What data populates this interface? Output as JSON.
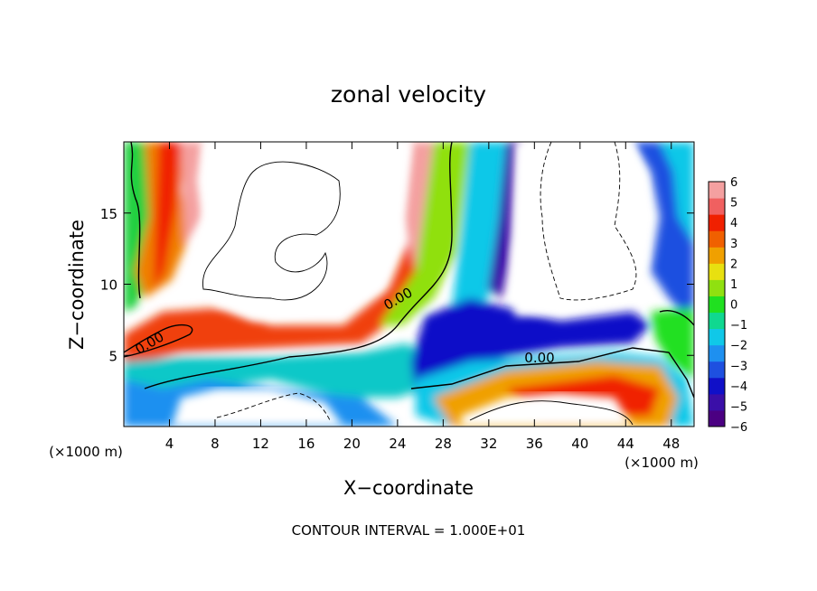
{
  "chart_data": {
    "type": "heatmap",
    "title": "zonal velocity",
    "xlabel": "X−coordinate",
    "ylabel": "Z−coordinate",
    "x_unit_left": "(×1000 m)",
    "x_unit_right": "(×1000 m)",
    "footer": "CONTOUR INTERVAL = 1.000E+01",
    "xlim": [
      0,
      50
    ],
    "ylim": [
      0,
      20
    ],
    "x_ticks": [
      4,
      8,
      12,
      16,
      20,
      24,
      28,
      32,
      36,
      40,
      44,
      48
    ],
    "y_ticks": [
      5,
      10,
      15
    ],
    "colorbar": {
      "min": -6,
      "max": 6,
      "labels": [
        "6",
        "5",
        "4",
        "3",
        "2",
        "1",
        "0",
        "−1",
        "−2",
        "−3",
        "−4",
        "−5",
        "−6"
      ],
      "colors": [
        "#4b0082",
        "#3a0fa8",
        "#1010c8",
        "#1e50e0",
        "#1e90f0",
        "#10c8e8",
        "#10d890",
        "#20e020",
        "#90e010",
        "#e8e010",
        "#f0a000",
        "#f06000",
        "#f02000",
        "#f06060",
        "#f4a0a0"
      ]
    },
    "contour_labels": [
      "0.00",
      "0.00",
      "0.00"
    ]
  }
}
